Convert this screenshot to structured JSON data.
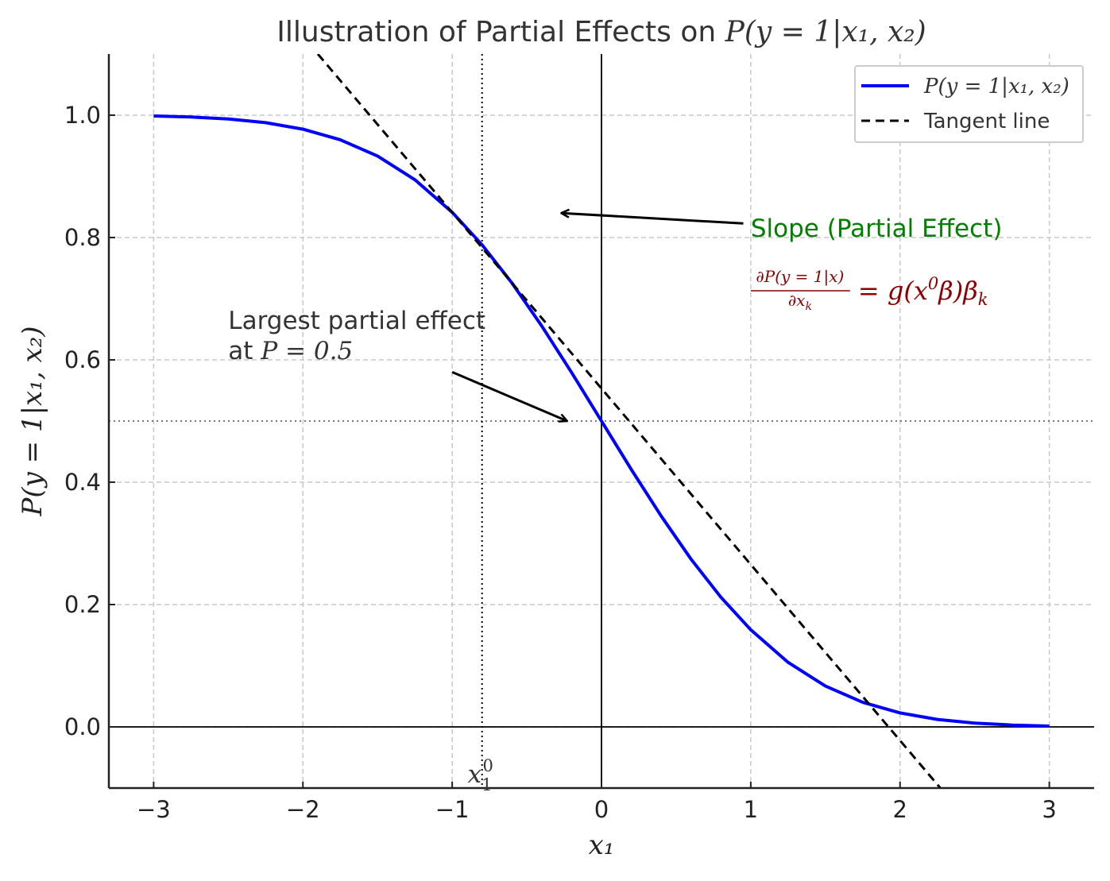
{
  "chart_data": {
    "type": "line",
    "title": {
      "text": "Illustration of Partial Effects on ",
      "math": "P(y = 1|x₁, x₂)"
    },
    "xlabel": "x₁",
    "ylabel": "P(y = 1|x₁, x₂)",
    "xlim": [
      -3.3,
      3.3
    ],
    "ylim": [
      -0.1,
      1.1
    ],
    "x_ticks": [
      -3,
      -2,
      -1,
      0,
      1,
      2,
      3
    ],
    "x_tick_labels": [
      "−3",
      "−2",
      "−1",
      "0",
      "1",
      "2",
      "3"
    ],
    "y_ticks": [
      0.0,
      0.2,
      0.4,
      0.6,
      0.8,
      1.0
    ],
    "y_tick_labels": [
      "0.0",
      "0.2",
      "0.4",
      "0.6",
      "0.8",
      "1.0"
    ],
    "grid": true,
    "series": [
      {
        "name": "P(y = 1|x₁, x₂)",
        "style": "solid",
        "color": "#0000ff",
        "x": [
          -3.0,
          -2.75,
          -2.5,
          -2.25,
          -2.0,
          -1.75,
          -1.5,
          -1.25,
          -1.0,
          -0.8,
          -0.6,
          -0.4,
          -0.2,
          0.0,
          0.2,
          0.4,
          0.6,
          0.8,
          1.0,
          1.25,
          1.5,
          1.75,
          2.0,
          2.25,
          2.5,
          2.75,
          3.0
        ],
        "y": [
          0.9987,
          0.997,
          0.9938,
          0.9878,
          0.9772,
          0.9599,
          0.9332,
          0.8944,
          0.8413,
          0.7881,
          0.7257,
          0.6554,
          0.5793,
          0.5,
          0.4207,
          0.3446,
          0.2743,
          0.2119,
          0.1587,
          0.1056,
          0.0668,
          0.0401,
          0.0228,
          0.0122,
          0.0062,
          0.003,
          0.0013
        ]
      },
      {
        "name": "Tangent line",
        "style": "dashed",
        "color": "#000000",
        "x": [
          -1.9,
          2.27
        ],
        "y": [
          1.1,
          -0.1
        ]
      }
    ],
    "reference_lines": {
      "x1_zero": {
        "x": -0.8,
        "label_base": "x",
        "label_sub": "1",
        "label_sup": "0"
      },
      "y_half": 0.5,
      "x_axis_at": 0.0,
      "y_axis_at": 0.0
    },
    "annotations": [
      {
        "id": "largest",
        "lines": [
          "Largest partial effect",
          "at "
        ],
        "math_suffix": "P = 0.5",
        "text_x": -2.5,
        "text_y": 0.63,
        "arrow_from": [
          -1.0,
          0.58
        ],
        "arrow_to": [
          -0.23,
          0.5
        ]
      },
      {
        "id": "slope",
        "text": "Slope (Partial Effect)",
        "color": "#008000",
        "text_x": 1.0,
        "text_y": 0.82,
        "arrow_from": [
          0.95,
          0.823
        ],
        "arrow_to": [
          -0.27,
          0.84
        ]
      },
      {
        "id": "formula",
        "color": "#8b0000",
        "numerator": "∂P(y = 1|x)",
        "denominator": "∂x",
        "denominator_sub": "k",
        "rhs": "= g(x",
        "rhs_sup": "0",
        "rhs_tail": "β)β",
        "rhs_sub": "k"
      }
    ],
    "legend": {
      "position": "top-right",
      "entries": [
        "P(y = 1|x₁, x₂)",
        "Tangent line"
      ]
    }
  }
}
